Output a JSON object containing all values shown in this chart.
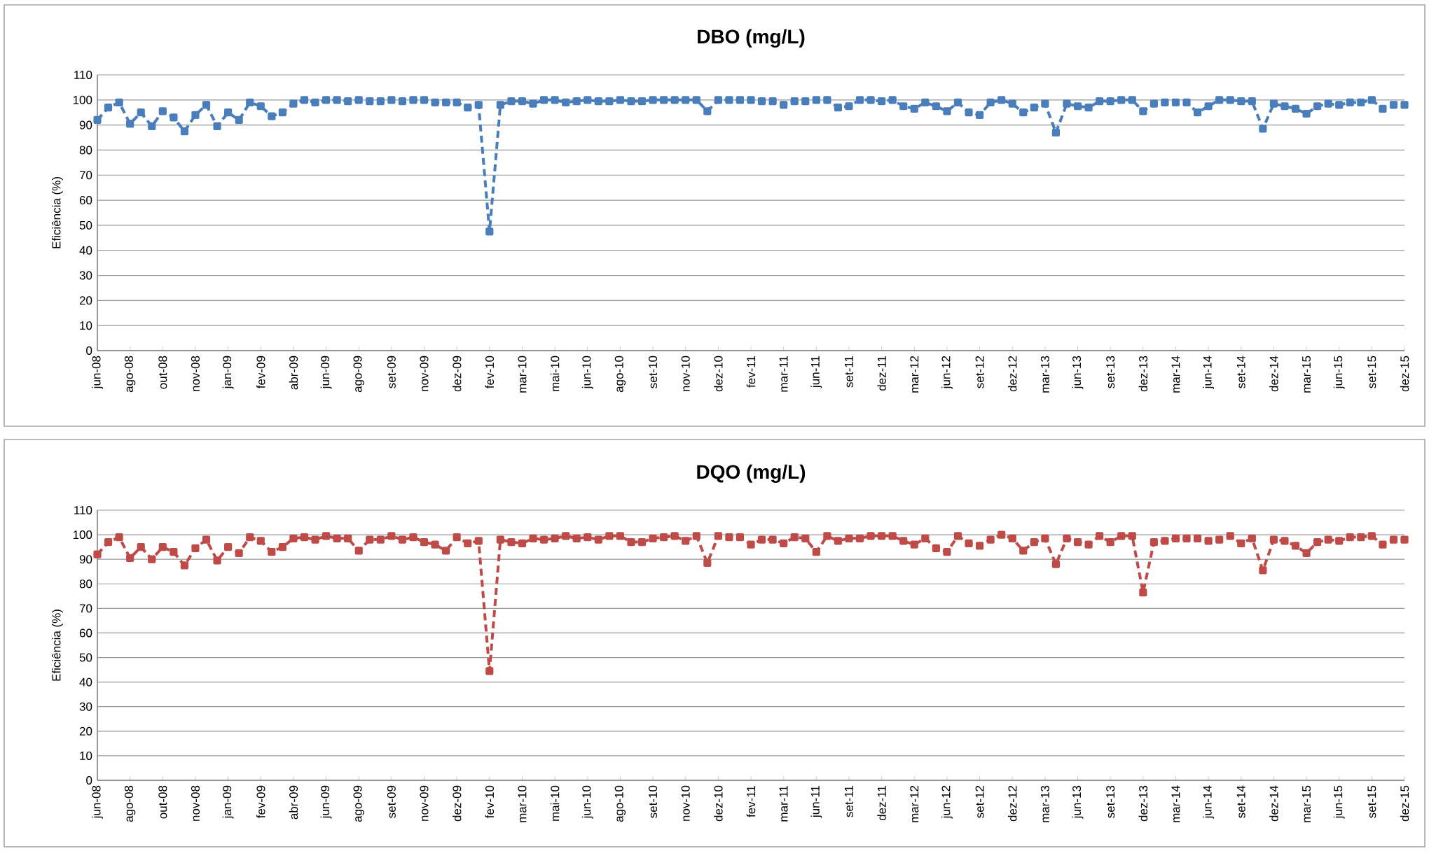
{
  "chart_data": [
    {
      "type": "line",
      "title": "DBO (mg/L)",
      "ylabel": "Eficiência (%)",
      "color": "#4a7ebb",
      "marker": "square",
      "line_style": "dashed",
      "grid": "y",
      "ylim": [
        0,
        110
      ],
      "yticks": [
        0,
        10,
        20,
        30,
        40,
        50,
        60,
        70,
        80,
        90,
        100,
        110
      ],
      "categories": [
        "jun-08",
        null,
        null,
        "ago-08",
        null,
        null,
        "out-08",
        null,
        null,
        "nov-08",
        null,
        null,
        "jan-09",
        null,
        null,
        "fev-09",
        null,
        null,
        "abr-09",
        null,
        null,
        "jun-09",
        null,
        null,
        "ago-09",
        null,
        null,
        "set-09",
        null,
        null,
        "nov-09",
        null,
        null,
        "dez-09",
        null,
        null,
        "fev-10",
        null,
        null,
        "mar-10",
        null,
        null,
        "mai-10",
        null,
        null,
        "jun-10",
        null,
        null,
        "ago-10",
        null,
        null,
        "set-10",
        null,
        null,
        "nov-10",
        null,
        null,
        "dez-10",
        null,
        null,
        "fev-11",
        null,
        null,
        "mar-11",
        null,
        null,
        "jun-11",
        null,
        null,
        "set-11",
        null,
        null,
        "dez-11",
        null,
        null,
        "mar-12",
        null,
        null,
        "jun-12",
        null,
        null,
        "set-12",
        null,
        null,
        "dez-12",
        null,
        null,
        "mar-13",
        null,
        null,
        "jun-13",
        null,
        null,
        "set-13",
        null,
        null,
        "dez-13",
        null,
        null,
        "mar-14",
        null,
        null,
        "jun-14",
        null,
        null,
        "set-14",
        null,
        null,
        "dez-14",
        null,
        null,
        "mar-15",
        null,
        null,
        "jun-15",
        null,
        null,
        "set-15",
        null,
        null,
        "dez-15"
      ],
      "values": [
        92,
        97,
        99,
        90.5,
        95,
        89.5,
        95.5,
        93,
        87.5,
        94,
        98,
        89.5,
        95,
        92,
        99,
        97.5,
        93.5,
        95,
        98.5,
        100,
        99,
        100,
        100,
        99.5,
        100,
        99.5,
        99.5,
        100,
        99.5,
        100,
        100,
        99,
        99,
        99,
        97,
        98,
        47.5,
        98,
        99.5,
        99.5,
        98.5,
        100,
        100,
        99,
        99.5,
        100,
        99.5,
        99.5,
        100,
        99.5,
        99.5,
        100,
        100,
        100,
        100,
        100,
        95.5,
        100,
        100,
        100,
        100,
        99.5,
        99.5,
        98,
        99.5,
        99.5,
        100,
        100,
        97,
        97.5,
        100,
        100,
        99.5,
        100,
        97.5,
        96.5,
        99,
        97.5,
        95.5,
        99,
        95,
        94,
        99,
        100,
        98.5,
        95,
        97,
        98.5,
        87,
        98.5,
        97.5,
        97,
        99.5,
        99.5,
        100,
        100,
        95.5,
        98.5,
        99,
        99,
        99,
        95,
        97.5,
        100,
        100,
        99.5,
        99.5,
        88.5,
        98.5,
        97.5,
        96.5,
        94.5,
        97.5,
        98.5,
        98,
        99,
        99,
        100,
        96.5,
        98,
        98
      ]
    },
    {
      "type": "line",
      "title": "DQO (mg/L)",
      "ylabel": "Eficiência (%)",
      "color": "#be4b48",
      "marker": "square",
      "line_style": "dashed",
      "grid": "y",
      "ylim": [
        0,
        110
      ],
      "yticks": [
        0,
        10,
        20,
        30,
        40,
        50,
        60,
        70,
        80,
        90,
        100,
        110
      ],
      "categories": [
        "jun-08",
        null,
        null,
        "ago-08",
        null,
        null,
        "out-08",
        null,
        null,
        "nov-08",
        null,
        null,
        "jan-09",
        null,
        null,
        "fev-09",
        null,
        null,
        "abr-09",
        null,
        null,
        "jun-09",
        null,
        null,
        "ago-09",
        null,
        null,
        "set-09",
        null,
        null,
        "nov-09",
        null,
        null,
        "dez-09",
        null,
        null,
        "fev-10",
        null,
        null,
        "mar-10",
        null,
        null,
        "mai-10",
        null,
        null,
        "jun-10",
        null,
        null,
        "ago-10",
        null,
        null,
        "set-10",
        null,
        null,
        "nov-10",
        null,
        null,
        "dez-10",
        null,
        null,
        "fev-11",
        null,
        null,
        "mar-11",
        null,
        null,
        "jun-11",
        null,
        null,
        "set-11",
        null,
        null,
        "dez-11",
        null,
        null,
        "mar-12",
        null,
        null,
        "jun-12",
        null,
        null,
        "set-12",
        null,
        null,
        "dez-12",
        null,
        null,
        "mar-13",
        null,
        null,
        "jun-13",
        null,
        null,
        "set-13",
        null,
        null,
        "dez-13",
        null,
        null,
        "mar-14",
        null,
        null,
        "jun-14",
        null,
        null,
        "set-14",
        null,
        null,
        "dez-14",
        null,
        null,
        "mar-15",
        null,
        null,
        "jun-15",
        null,
        null,
        "set-15",
        null,
        null,
        "dez-15"
      ],
      "values": [
        92,
        97,
        99,
        90.5,
        95,
        90,
        95,
        93,
        87.5,
        94.5,
        98,
        89.5,
        95,
        92.5,
        99,
        97.5,
        93,
        95,
        98.5,
        99,
        98,
        99.5,
        98.5,
        98.5,
        93.5,
        98,
        98,
        99.5,
        98,
        99,
        97,
        96,
        93.5,
        99,
        96.5,
        97.5,
        44.5,
        98,
        97,
        96.5,
        98.5,
        98,
        98.5,
        99.5,
        98.5,
        99,
        98,
        99.5,
        99.5,
        97,
        97,
        98.5,
        99,
        99.5,
        97.5,
        99.5,
        88.5,
        99.5,
        99,
        99,
        96,
        98,
        98,
        96.5,
        99,
        98.5,
        93,
        99.5,
        97.5,
        98.5,
        98.5,
        99.5,
        99.5,
        99.5,
        97.5,
        96,
        98.5,
        94.5,
        93,
        99.5,
        96.5,
        95.5,
        98,
        100,
        98.5,
        93.5,
        97,
        98.5,
        88,
        98.5,
        97,
        96,
        99.5,
        97,
        99.5,
        99.5,
        76.5,
        97,
        97.5,
        98.5,
        98.5,
        98.5,
        97.5,
        98,
        99.5,
        96.5,
        98.5,
        85.5,
        98,
        97.5,
        95.5,
        92.5,
        97,
        98,
        97.5,
        99,
        99,
        99.5,
        96,
        98,
        98
      ]
    }
  ]
}
